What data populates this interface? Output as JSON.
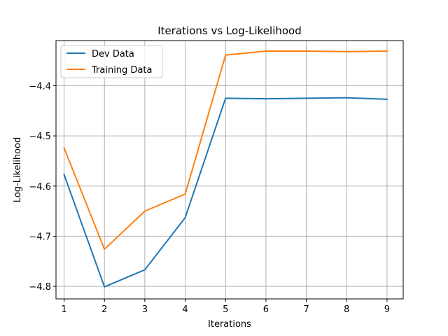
{
  "chart_data": {
    "type": "line",
    "title": "Iterations vs Log-Likelihood",
    "xlabel": "Iterations",
    "ylabel": "Log-Likelihood",
    "x": [
      1,
      2,
      3,
      4,
      5,
      6,
      7,
      8,
      9
    ],
    "xlim": [
      0.8,
      9.4
    ],
    "ylim": [
      -4.825,
      -4.31
    ],
    "xticks": [
      "1",
      "2",
      "3",
      "4",
      "5",
      "6",
      "7",
      "8",
      "9"
    ],
    "yticks": [
      "−4.8",
      "−4.7",
      "−4.6",
      "−4.5",
      "−4.4"
    ],
    "ytick_values": [
      -4.8,
      -4.7,
      -4.6,
      -4.5,
      -4.4
    ],
    "grid": true,
    "legend_position": "top-left",
    "series": [
      {
        "name": "Dev Data",
        "color": "#1f77b4",
        "values": [
          -4.577,
          -4.801,
          -4.767,
          -4.663,
          -4.425,
          -4.426,
          -4.425,
          -4.424,
          -4.427
        ]
      },
      {
        "name": "Training Data",
        "color": "#ff7f0e",
        "values": [
          -4.524,
          -4.726,
          -4.65,
          -4.616,
          -4.339,
          -4.331,
          -4.331,
          -4.332,
          -4.331
        ]
      }
    ]
  }
}
